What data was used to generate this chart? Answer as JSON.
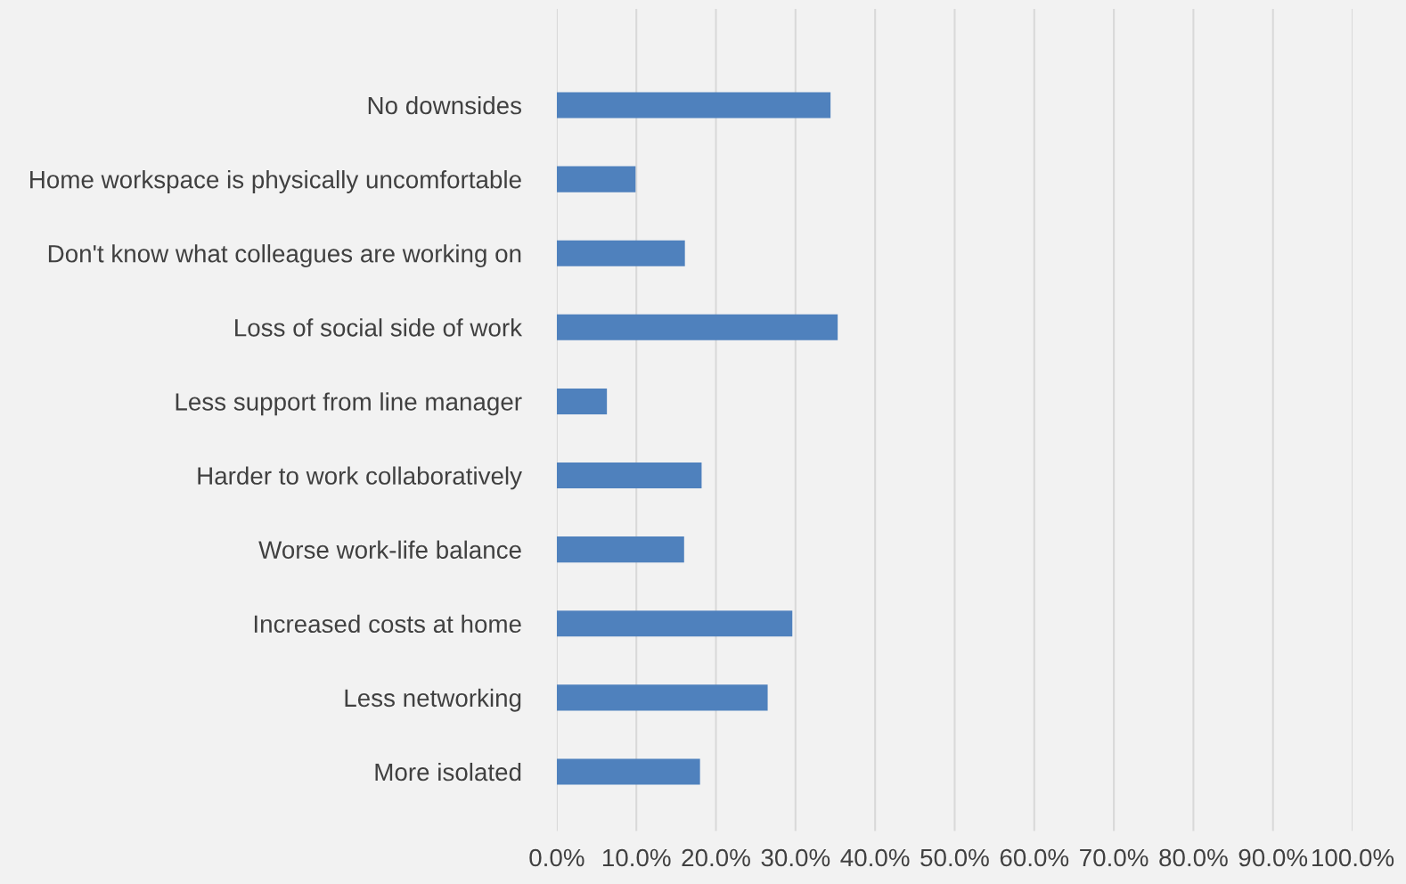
{
  "chart_data": {
    "type": "bar",
    "orientation": "horizontal",
    "categories": [
      "No downsides",
      "Home workspace is physically uncomfortable",
      "Don't know what colleagues are working on",
      "Loss of social side of work",
      "Less support from line manager",
      "Harder to work collaboratively",
      "Worse work-life balance",
      "Increased costs at home",
      "Less networking",
      "More isolated"
    ],
    "values": [
      34.4,
      9.9,
      16.1,
      35.3,
      6.3,
      18.2,
      16.0,
      29.6,
      26.5,
      18.0
    ],
    "color": "#4f81bd",
    "xlim": [
      0,
      100
    ],
    "xticks": [
      {
        "value": 0,
        "label": "0.0%"
      },
      {
        "value": 10,
        "label": "10.0%"
      },
      {
        "value": 20,
        "label": "20.0%"
      },
      {
        "value": 30,
        "label": "30.0%"
      },
      {
        "value": 40,
        "label": "40.0%"
      },
      {
        "value": 50,
        "label": "50.0%"
      },
      {
        "value": 60,
        "label": "60.0%"
      },
      {
        "value": 70,
        "label": "70.0%"
      },
      {
        "value": 80,
        "label": "80.0%"
      },
      {
        "value": 90,
        "label": "90.0%"
      },
      {
        "value": 100,
        "label": "100.0%"
      }
    ],
    "grid": "x"
  }
}
